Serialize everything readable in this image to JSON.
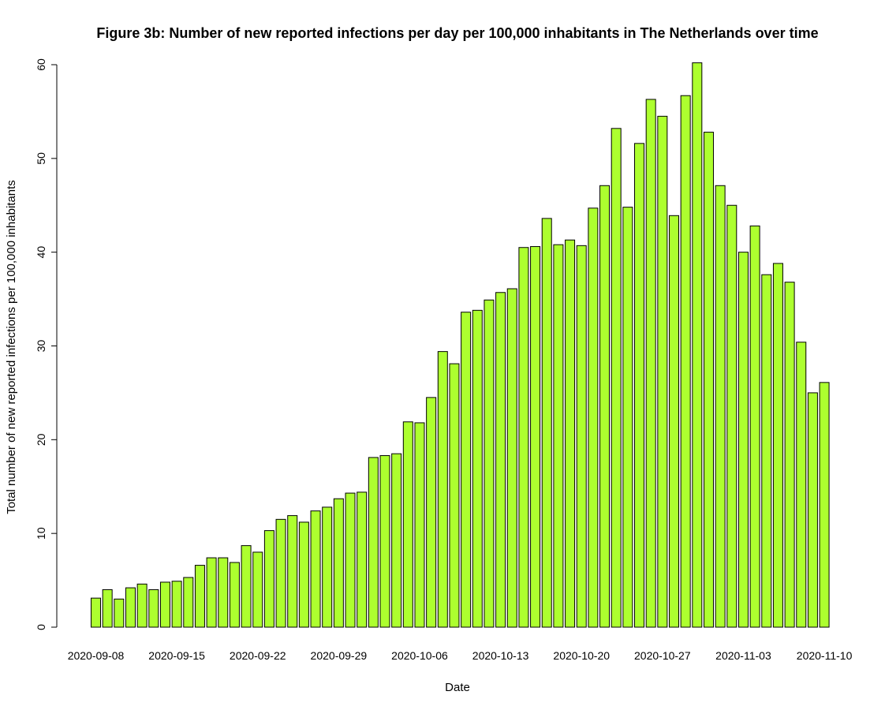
{
  "chart_data": {
    "type": "bar",
    "title": "Figure 3b: Number of new reported infections per day per 100,000 inhabitants in The Netherlands over time",
    "xlabel": "Date",
    "ylabel": "Total number of new reported infections per 100,000 inhabitants",
    "ylim": [
      0,
      60
    ],
    "yticks": [
      0,
      10,
      20,
      30,
      40,
      50,
      60
    ],
    "bar_color": "#adff2f",
    "bar_border_color": "#000000",
    "grid": false,
    "x_tick_labels": [
      "2020-09-08",
      "2020-09-15",
      "2020-09-22",
      "2020-09-29",
      "2020-10-06",
      "2020-10-13",
      "2020-10-20",
      "2020-10-27",
      "2020-11-03",
      "2020-11-10"
    ],
    "categories": [
      "2020-09-08",
      "2020-09-09",
      "2020-09-10",
      "2020-09-11",
      "2020-09-12",
      "2020-09-13",
      "2020-09-14",
      "2020-09-15",
      "2020-09-16",
      "2020-09-17",
      "2020-09-18",
      "2020-09-19",
      "2020-09-20",
      "2020-09-21",
      "2020-09-22",
      "2020-09-23",
      "2020-09-24",
      "2020-09-25",
      "2020-09-26",
      "2020-09-27",
      "2020-09-28",
      "2020-09-29",
      "2020-09-30",
      "2020-10-01",
      "2020-10-02",
      "2020-10-03",
      "2020-10-04",
      "2020-10-05",
      "2020-10-06",
      "2020-10-07",
      "2020-10-08",
      "2020-10-09",
      "2020-10-10",
      "2020-10-11",
      "2020-10-12",
      "2020-10-13",
      "2020-10-14",
      "2020-10-15",
      "2020-10-16",
      "2020-10-17",
      "2020-10-18",
      "2020-10-19",
      "2020-10-20",
      "2020-10-21",
      "2020-10-22",
      "2020-10-23",
      "2020-10-24",
      "2020-10-25",
      "2020-10-26",
      "2020-10-27",
      "2020-10-28",
      "2020-10-29",
      "2020-10-30",
      "2020-10-31",
      "2020-11-01",
      "2020-11-02",
      "2020-11-03",
      "2020-11-04",
      "2020-11-05",
      "2020-11-06",
      "2020-11-07",
      "2020-11-08",
      "2020-11-09",
      "2020-11-10"
    ],
    "values": [
      3.1,
      4.0,
      3.0,
      4.2,
      4.6,
      4.0,
      4.8,
      4.9,
      5.3,
      6.6,
      7.4,
      7.4,
      6.9,
      8.7,
      8.0,
      10.3,
      11.5,
      11.9,
      11.2,
      12.4,
      12.8,
      13.7,
      14.3,
      14.4,
      18.1,
      18.3,
      18.5,
      21.9,
      21.8,
      24.5,
      29.4,
      28.1,
      33.6,
      33.8,
      34.9,
      35.7,
      36.1,
      40.5,
      40.6,
      43.6,
      40.8,
      41.3,
      40.7,
      44.7,
      47.1,
      53.2,
      44.8,
      51.6,
      56.3,
      54.5,
      43.9,
      56.7,
      60.2,
      52.8,
      47.1,
      45.0,
      40.0,
      42.8,
      37.6,
      38.8,
      36.8,
      30.4,
      25.0,
      26.1
    ]
  }
}
